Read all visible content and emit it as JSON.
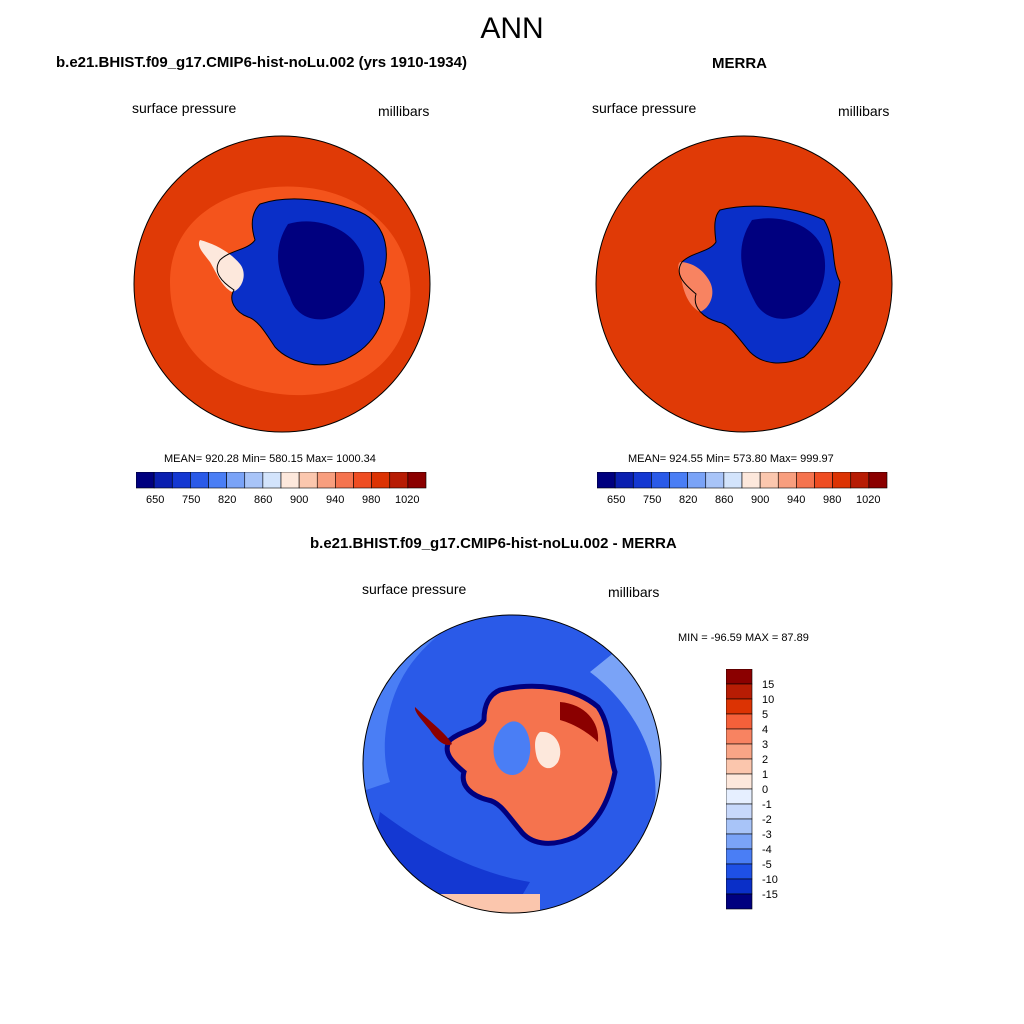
{
  "page_title": "ANN",
  "panels": {
    "model": {
      "title": "b.e21.BHIST.f09_g17.CMIP6-hist-noLu.002 (yrs 1910-1934)",
      "left_label": "surface pressure",
      "right_label": "millibars",
      "stats": "MEAN= 920.28  Min= 580.15  Max= 1000.34"
    },
    "obs": {
      "title": "MERRA",
      "left_label": "surface pressure",
      "right_label": "millibars",
      "stats": "MEAN= 924.55  Min= 573.80  Max= 999.97"
    },
    "diff": {
      "title": "b.e21.BHIST.f09_g17.CMIP6-hist-noLu.002 - MERRA",
      "left_label": "surface pressure",
      "right_label": "millibars",
      "minmax": "MIN = -96.59 MAX =  87.89"
    }
  },
  "colorbar_abs": {
    "ticks": [
      "650",
      "750",
      "820",
      "860",
      "900",
      "940",
      "980",
      "1020"
    ],
    "colors": [
      "#00007f",
      "#0a1fb0",
      "#1438d2",
      "#2a5ae8",
      "#4a7ef5",
      "#7aa3f7",
      "#a8c4f8",
      "#d3e4fc",
      "#fde8dc",
      "#fbc7ae",
      "#f89e7e",
      "#f5734e",
      "#ef4d22",
      "#dc3303",
      "#b71c04",
      "#8b0000"
    ]
  },
  "colorbar_diff": {
    "ticks": [
      "15",
      "10",
      "5",
      "4",
      "3",
      "2",
      "1",
      "0",
      "-1",
      "-2",
      "-3",
      "-4",
      "-5",
      "-10",
      "-15"
    ],
    "colors": [
      "#8b0000",
      "#b71c04",
      "#dc3303",
      "#f5603a",
      "#f88361",
      "#f9a586",
      "#fbc6ad",
      "#fde8dc",
      "#e6efff",
      "#c7d8fb",
      "#a8c4f8",
      "#7aa3f7",
      "#4a7ef5",
      "#1e50e6",
      "#0a2fc8",
      "#00007f"
    ]
  },
  "map_colors": {
    "ocean_high": "#e03a06",
    "ocean_mid": "#f4541c",
    "ice_low": "#0a2fc8",
    "ice_core": "#00007f",
    "diff_ocean": "#2a5ae8",
    "diff_light": "#7aa3f7",
    "diff_pos": "#dc3303"
  }
}
